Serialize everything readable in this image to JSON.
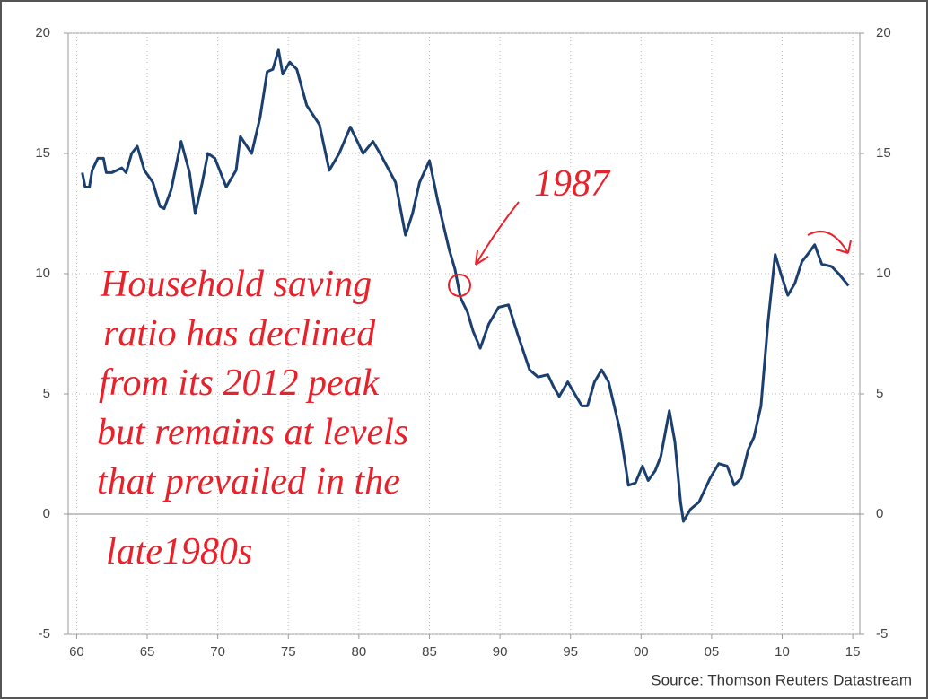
{
  "chart_data": {
    "type": "line",
    "x": [
      1960.4,
      1960.6,
      1960.9,
      1961.1,
      1961.5,
      1961.9,
      1962.1,
      1962.5,
      1963.2,
      1963.5,
      1963.9,
      1964.3,
      1964.8,
      1965.4,
      1965.9,
      1966.2,
      1966.7,
      1967.4,
      1968.0,
      1968.4,
      1968.9,
      1969.3,
      1969.8,
      1970.6,
      1971.3,
      1971.6,
      1972.4,
      1973.0,
      1973.5,
      1973.9,
      1974.3,
      1974.6,
      1975.1,
      1975.6,
      1976.3,
      1977.2,
      1977.9,
      1978.6,
      1979.4,
      1980.3,
      1981.0,
      1981.5,
      1982.6,
      1983.3,
      1983.8,
      1984.3,
      1985.0,
      1985.6,
      1986.4,
      1986.8,
      1987.2,
      1987.7,
      1988.1,
      1988.6,
      1989.2,
      1989.9,
      1990.6,
      1991.3,
      1992.1,
      1992.7,
      1993.4,
      1993.8,
      1994.2,
      1994.8,
      1995.3,
      1995.8,
      1996.2,
      1996.7,
      1997.2,
      1997.7,
      1998.5,
      1998.9,
      1999.1,
      1999.6,
      2000.1,
      2000.5,
      2001.0,
      2001.4,
      2002.0,
      2002.4,
      2002.8,
      2003.0,
      2003.5,
      2004.1,
      2004.9,
      2005.5,
      2006.1,
      2006.6,
      2007.1,
      2007.6,
      2008.0,
      2008.5,
      2009.0,
      2009.5,
      2009.9,
      2010.4,
      2010.9,
      2011.4,
      2011.8,
      2012.3,
      2012.8,
      2013.5,
      2014.0,
      2014.7
    ],
    "series": [
      {
        "color": "#1b3f6e",
        "values": [
          14.2,
          13.6,
          13.6,
          14.3,
          14.8,
          14.8,
          14.2,
          14.2,
          14.4,
          14.2,
          15.0,
          15.3,
          14.3,
          13.8,
          12.8,
          12.7,
          13.5,
          15.5,
          14.2,
          12.5,
          13.8,
          15.0,
          14.8,
          13.6,
          14.3,
          15.7,
          15.0,
          16.5,
          18.4,
          18.5,
          19.3,
          18.3,
          18.8,
          18.5,
          17.0,
          16.2,
          14.3,
          15.0,
          16.1,
          15.0,
          15.5,
          15.0,
          13.8,
          11.6,
          12.5,
          13.8,
          14.7,
          13.0,
          11.0,
          10.2,
          9.0,
          8.4,
          7.6,
          6.9,
          7.9,
          8.6,
          8.7,
          7.4,
          6.0,
          5.7,
          5.8,
          5.3,
          4.9,
          5.5,
          5.0,
          4.5,
          4.5,
          5.5,
          6.0,
          5.5,
          3.5,
          2.0,
          1.2,
          1.3,
          2.0,
          1.4,
          1.8,
          2.4,
          4.3,
          3.0,
          0.5,
          -0.3,
          0.2,
          0.5,
          1.5,
          2.1,
          2.0,
          1.2,
          1.5,
          2.7,
          3.2,
          4.5,
          8.0,
          10.8,
          10.0,
          9.1,
          9.6,
          10.5,
          10.8,
          11.2,
          10.4,
          10.3,
          10.0,
          9.5
        ]
      }
    ],
    "xlim": [
      1959.4,
      2015.5
    ],
    "xticks": [
      {
        "value": 1960,
        "label": "60"
      },
      {
        "value": 1965,
        "label": "65"
      },
      {
        "value": 1970,
        "label": "70"
      },
      {
        "value": 1975,
        "label": "75"
      },
      {
        "value": 1980,
        "label": "80"
      },
      {
        "value": 1985,
        "label": "85"
      },
      {
        "value": 1990,
        "label": "90"
      },
      {
        "value": 1995,
        "label": "95"
      },
      {
        "value": 2000,
        "label": "00"
      },
      {
        "value": 2005,
        "label": "05"
      },
      {
        "value": 2010,
        "label": "10"
      },
      {
        "value": 2015,
        "label": "15"
      }
    ],
    "ylim": [
      -5,
      20
    ],
    "yticks": [
      -5,
      0,
      5,
      10,
      15,
      20
    ],
    "y2lim": [
      -5,
      20
    ],
    "y2ticks": [
      -5,
      0,
      5,
      10,
      15,
      20
    ],
    "grid": true,
    "source": "Source: Thomson Reuters Datastream",
    "annotations": [
      "Household saving",
      "ratio has declined",
      "from its 2012 peak",
      "but remains at levels",
      "that prevailed in the",
      "late1980s",
      "1987"
    ]
  }
}
